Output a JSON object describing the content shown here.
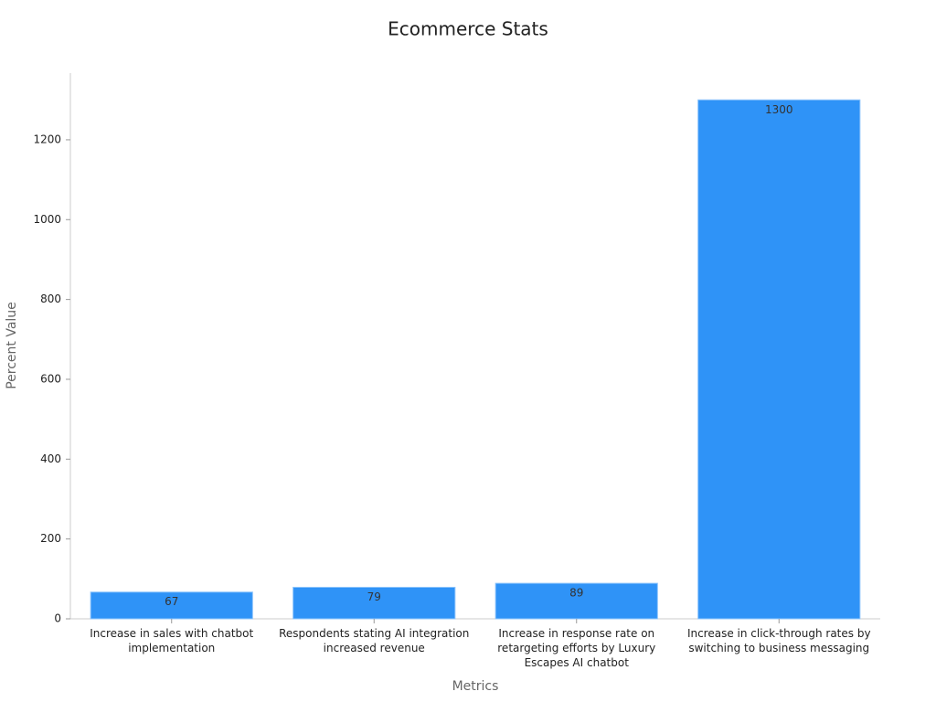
{
  "chart_data": {
    "type": "bar",
    "title": "Ecommerce Stats",
    "x_label": "Metrics",
    "y_label": "Percent Value",
    "categories": [
      "Increase in sales with chatbot implementation",
      "Respondents stating AI integration increased revenue",
      "Increase in response rate on retargeting efforts by Luxury Escapes AI chatbot",
      "Increase in click-through rates by switching to business messaging"
    ],
    "values": [
      67,
      79,
      89,
      1300
    ],
    "color": "#2f93f7",
    "ylim": [
      0,
      1367
    ],
    "yticks": [
      0,
      200,
      400,
      600,
      800,
      1000,
      1200
    ],
    "grid": false
  }
}
